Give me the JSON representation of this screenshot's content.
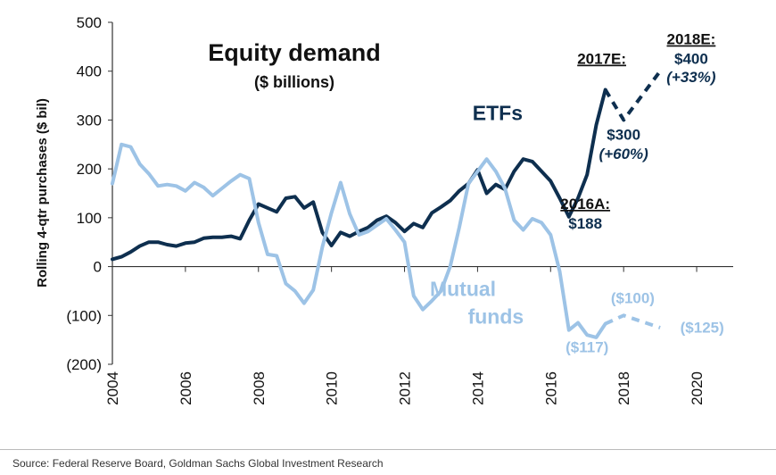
{
  "chart_data": {
    "type": "line",
    "title": "Equity demand",
    "subtitle": "($ billions)",
    "ylabel": "Rolling 4-qtr purchases ($ bil)",
    "xlabel": "",
    "xlim": [
      2004,
      2021
    ],
    "ylim": [
      -200,
      500
    ],
    "x_ticks": [
      2004,
      2006,
      2008,
      2010,
      2012,
      2014,
      2016,
      2018,
      2020
    ],
    "x_tick_labels": [
      "2004",
      "2006",
      "2008",
      "2010",
      "2012",
      "2014",
      "2016",
      "2018",
      "2020"
    ],
    "y_ticks": [
      -200,
      -100,
      0,
      100,
      200,
      300,
      400,
      500
    ],
    "y_tick_labels": [
      "(200)",
      "(100)",
      "0",
      "100",
      "200",
      "300",
      "400",
      "500"
    ],
    "grid": false,
    "colors": {
      "etf": "#0e2f4f",
      "mutual": "#9dc3e6"
    },
    "series": [
      {
        "name": "ETFs",
        "color": "#0e2f4f",
        "x": [
          2004.0,
          2004.25,
          2004.5,
          2004.75,
          2005.0,
          2005.25,
          2005.5,
          2005.75,
          2006.0,
          2006.25,
          2006.5,
          2006.75,
          2007.0,
          2007.25,
          2007.5,
          2007.75,
          2008.0,
          2008.25,
          2008.5,
          2008.75,
          2009.0,
          2009.25,
          2009.5,
          2009.75,
          2010.0,
          2010.25,
          2010.5,
          2010.75,
          2011.0,
          2011.25,
          2011.5,
          2011.75,
          2012.0,
          2012.25,
          2012.5,
          2012.75,
          2013.0,
          2013.25,
          2013.5,
          2013.75,
          2014.0,
          2014.25,
          2014.5,
          2014.75,
          2015.0,
          2015.25,
          2015.5,
          2015.75,
          2016.0,
          2016.25,
          2016.5,
          2016.75,
          2017.0,
          2017.25,
          2017.5
        ],
        "values": [
          15,
          20,
          30,
          42,
          50,
          50,
          45,
          42,
          48,
          50,
          58,
          60,
          60,
          62,
          57,
          95,
          128,
          120,
          112,
          140,
          143,
          120,
          132,
          70,
          43,
          70,
          62,
          72,
          80,
          95,
          103,
          90,
          72,
          88,
          80,
          110,
          122,
          135,
          155,
          170,
          198,
          150,
          168,
          158,
          195,
          220,
          215,
          195,
          175,
          140,
          102,
          140,
          188,
          290,
          362
        ]
      },
      {
        "name": "ETFs projection",
        "color": "#0e2f4f",
        "dashed": true,
        "x": [
          2017.5,
          2018.0,
          2019.0
        ],
        "values": [
          362,
          300,
          400
        ]
      },
      {
        "name": "Mutual funds",
        "color": "#9dc3e6",
        "x": [
          2004.0,
          2004.25,
          2004.5,
          2004.75,
          2005.0,
          2005.25,
          2005.5,
          2005.75,
          2006.0,
          2006.25,
          2006.5,
          2006.75,
          2007.0,
          2007.25,
          2007.5,
          2007.75,
          2008.0,
          2008.25,
          2008.5,
          2008.75,
          2009.0,
          2009.25,
          2009.5,
          2009.75,
          2010.0,
          2010.25,
          2010.5,
          2010.75,
          2011.0,
          2011.25,
          2011.5,
          2011.75,
          2012.0,
          2012.25,
          2012.5,
          2012.75,
          2013.0,
          2013.25,
          2013.5,
          2013.75,
          2014.0,
          2014.25,
          2014.5,
          2014.75,
          2015.0,
          2015.25,
          2015.5,
          2015.75,
          2016.0,
          2016.25,
          2016.5,
          2016.75,
          2017.0,
          2017.25,
          2017.5
        ],
        "values": [
          170,
          250,
          245,
          210,
          190,
          165,
          168,
          165,
          155,
          172,
          162,
          145,
          160,
          175,
          188,
          180,
          90,
          25,
          22,
          -35,
          -50,
          -75,
          -48,
          40,
          110,
          172,
          108,
          65,
          72,
          85,
          98,
          75,
          50,
          -60,
          -88,
          -70,
          -50,
          0,
          80,
          170,
          195,
          220,
          195,
          160,
          95,
          75,
          98,
          90,
          65,
          -10,
          -130,
          -115,
          -140,
          -145,
          -117
        ]
      },
      {
        "name": "Mutual funds projection",
        "color": "#9dc3e6",
        "dashed": true,
        "x": [
          2017.5,
          2018.0,
          2019.0
        ],
        "values": [
          -117,
          -100,
          -125
        ]
      }
    ],
    "annotations": [
      {
        "text": "ETFs",
        "x": 2014.55,
        "y": 300,
        "color": "#0e2f4f",
        "size": 23
      },
      {
        "text": "Mutual",
        "x": 2013.6,
        "y": -60,
        "color": "#9dc3e6",
        "size": 23
      },
      {
        "text": "funds",
        "x": 2014.5,
        "y": -117,
        "color": "#9dc3e6",
        "size": 23
      },
      {
        "text": "2016A:",
        "x": 2016.95,
        "y": 118,
        "color": "#111111",
        "size": 17,
        "underline": true
      },
      {
        "text": "$188",
        "x": 2016.95,
        "y": 78,
        "color": "#0e2f4f",
        "size": 17
      },
      {
        "text": "2017E:",
        "x": 2017.4,
        "y": 415,
        "color": "#111111",
        "size": 17,
        "underline": true
      },
      {
        "text": "$300",
        "x": 2018.0,
        "y": 260,
        "color": "#0e2f4f",
        "size": 17
      },
      {
        "text": "(+60%)",
        "x": 2018.0,
        "y": 220,
        "color": "#0e2f4f",
        "size": 17,
        "italic": true
      },
      {
        "text": "2018E:",
        "x": 2019.85,
        "y": 455,
        "color": "#111111",
        "size": 17,
        "underline": true
      },
      {
        "text": "$400",
        "x": 2019.85,
        "y": 415,
        "color": "#0e2f4f",
        "size": 17
      },
      {
        "text": "(+33%)",
        "x": 2019.85,
        "y": 378,
        "color": "#0e2f4f",
        "size": 17,
        "italic": true
      },
      {
        "text": "($100)",
        "x": 2018.25,
        "y": -75,
        "color": "#9dc3e6",
        "size": 17
      },
      {
        "text": "($125)",
        "x": 2020.15,
        "y": -135,
        "color": "#9dc3e6",
        "size": 17
      },
      {
        "text": "($117)",
        "x": 2017.0,
        "y": -175,
        "color": "#9dc3e6",
        "size": 17
      }
    ]
  },
  "source": "Source: Federal Reserve Board, Goldman Sachs Global Investment Research"
}
